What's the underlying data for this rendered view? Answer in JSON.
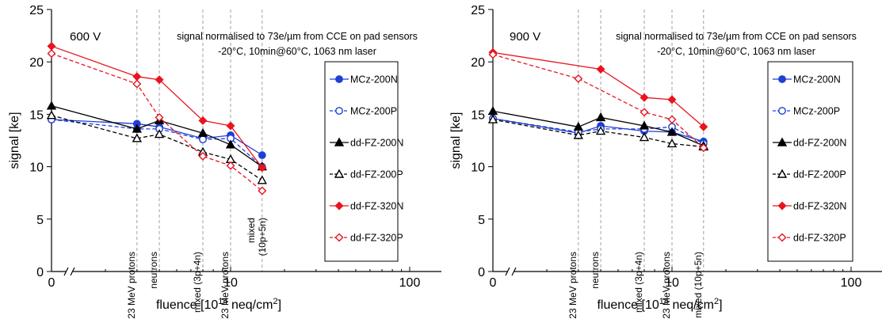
{
  "chart_data": [
    {
      "type": "line",
      "voltage": "600 V",
      "note_line1": "signal normalised to 73e/µm from CCE on pad sensors",
      "note_line2": "-20°C, 10min@60°C, 1063 nm laser",
      "ylabel": "signal [ke]",
      "xlabel": "fluence [10",
      "xlabel_sup": "14",
      "xlabel_tail": " neq/cm",
      "xlabel_sup2": "2",
      "xlabel_end": "]",
      "ylim": [
        0,
        25
      ],
      "yticks": [
        "0",
        "5",
        "10",
        "15",
        "20",
        "25"
      ],
      "xscale": "log with broken axis at 0",
      "xticks": [
        {
          "v": 0,
          "label": "0"
        },
        {
          "v": 10,
          "label": "10"
        },
        {
          "v": 100,
          "label": "100"
        }
      ],
      "fluence_lines": [
        {
          "x": 3,
          "label": "23 MeV protons"
        },
        {
          "x": 4,
          "label": "neutrons"
        },
        {
          "x": 7,
          "label": "mixed  (3p+4n)"
        },
        {
          "x": 10,
          "label": "23 MeV protons"
        },
        {
          "x": 15,
          "label": "mixed",
          "label2": "(10p+5n)"
        }
      ],
      "legend": "right",
      "series": [
        {
          "name": "MCz-200N",
          "color": "#1f3fd6",
          "marker": "circle-filled",
          "dash": false,
          "points": [
            [
              0,
              14.5
            ],
            [
              3,
              14.1
            ],
            [
              4,
              13.8
            ],
            [
              7,
              12.7
            ],
            [
              10,
              13.0
            ],
            [
              15,
              11.1
            ]
          ]
        },
        {
          "name": "MCz-200P",
          "color": "#1f3fd6",
          "marker": "circle-open",
          "dash": true,
          "points": [
            [
              0,
              14.5
            ],
            [
              3,
              13.6
            ],
            [
              4,
              13.6
            ],
            [
              7,
              12.6
            ],
            [
              10,
              12.7
            ],
            [
              15,
              10.0
            ]
          ]
        },
        {
          "name": "dd-FZ-200N",
          "color": "#000000",
          "marker": "triangle-filled",
          "dash": false,
          "points": [
            [
              0,
              15.8
            ],
            [
              3,
              13.6
            ],
            [
              4,
              14.4
            ],
            [
              7,
              13.2
            ],
            [
              10,
              12.1
            ],
            [
              15,
              10.0
            ]
          ]
        },
        {
          "name": "dd-FZ-200P",
          "color": "#000000",
          "marker": "triangle-open",
          "dash": true,
          "points": [
            [
              0,
              14.9
            ],
            [
              3,
              12.7
            ],
            [
              4,
              13.1
            ],
            [
              7,
              11.4
            ],
            [
              10,
              10.7
            ],
            [
              15,
              8.7
            ]
          ]
        },
        {
          "name": "dd-FZ-320N",
          "color": "#e8141e",
          "marker": "diamond-filled",
          "dash": false,
          "points": [
            [
              0,
              21.5
            ],
            [
              3,
              18.6
            ],
            [
              4,
              18.3
            ],
            [
              7,
              14.4
            ],
            [
              10,
              13.9
            ],
            [
              15,
              9.9
            ]
          ]
        },
        {
          "name": "dd-FZ-320P",
          "color": "#e8141e",
          "marker": "diamond-open",
          "dash": true,
          "points": [
            [
              0,
              20.8
            ],
            [
              3,
              17.9
            ],
            [
              4,
              14.7
            ],
            [
              7,
              11.0
            ],
            [
              10,
              10.1
            ],
            [
              15,
              7.7
            ]
          ]
        }
      ]
    },
    {
      "type": "line",
      "voltage": "900 V",
      "note_line1": "signal normalised to 73e/µm from CCE on pad sensors",
      "note_line2": "-20°C, 10min@60°C, 1063 nm laser",
      "ylabel": "signal [ke]",
      "xlabel": "fluence [10",
      "xlabel_sup": "14",
      "xlabel_tail": " neq/cm",
      "xlabel_sup2": "2",
      "xlabel_end": "]",
      "ylim": [
        0,
        25
      ],
      "yticks": [
        "0",
        "5",
        "10",
        "15",
        "20",
        "25"
      ],
      "xscale": "log with broken axis at 0",
      "xticks": [
        {
          "v": 0,
          "label": "0"
        },
        {
          "v": 10,
          "label": "10"
        },
        {
          "v": 100,
          "label": "100"
        }
      ],
      "fluence_lines": [
        {
          "x": 3,
          "label": "23 MeV protons"
        },
        {
          "x": 4,
          "label": "neutrons"
        },
        {
          "x": 7,
          "label": "mixed  (3p+4n)"
        },
        {
          "x": 10,
          "label": "23 MeV protons"
        },
        {
          "x": 15,
          "label": "mixed (10p+5n)"
        }
      ],
      "legend": "right",
      "series": [
        {
          "name": "MCz-200N",
          "color": "#1f3fd6",
          "marker": "circle-filled",
          "dash": false,
          "points": [
            [
              0,
              14.6
            ],
            [
              3,
              13.2
            ],
            [
              4,
              13.9
            ],
            [
              7,
              13.4
            ],
            [
              10,
              13.3
            ],
            [
              15,
              12.4
            ]
          ]
        },
        {
          "name": "MCz-200P",
          "color": "#1f3fd6",
          "marker": "circle-open",
          "dash": true,
          "points": [
            [
              0,
              14.6
            ],
            [
              3,
              13.3
            ],
            [
              4,
              13.6
            ],
            [
              7,
              13.6
            ],
            [
              10,
              13.8
            ],
            [
              15,
              12.2
            ]
          ]
        },
        {
          "name": "dd-FZ-200N",
          "color": "#000000",
          "marker": "triangle-filled",
          "dash": false,
          "points": [
            [
              0,
              15.3
            ],
            [
              3,
              13.8
            ],
            [
              4,
              14.7
            ],
            [
              7,
              13.9
            ],
            [
              10,
              13.3
            ],
            [
              15,
              12.0
            ]
          ]
        },
        {
          "name": "dd-FZ-200P",
          "color": "#000000",
          "marker": "triangle-open",
          "dash": true,
          "points": [
            [
              0,
              14.5
            ],
            [
              3,
              13.0
            ],
            [
              4,
              13.4
            ],
            [
              7,
              12.8
            ],
            [
              10,
              12.2
            ],
            [
              15,
              11.9
            ]
          ]
        },
        {
          "name": "dd-FZ-320N",
          "color": "#e8141e",
          "marker": "diamond-filled",
          "dash": false,
          "points": [
            [
              0,
              20.9
            ],
            [
              4,
              19.3
            ],
            [
              7,
              16.6
            ],
            [
              10,
              16.4
            ],
            [
              15,
              13.8
            ]
          ]
        },
        {
          "name": "dd-FZ-320P",
          "color": "#e8141e",
          "marker": "diamond-open",
          "dash": true,
          "points": [
            [
              0,
              20.7
            ],
            [
              3,
              18.4
            ],
            [
              7,
              15.2
            ],
            [
              10,
              14.5
            ],
            [
              15,
              11.8
            ]
          ]
        }
      ]
    }
  ]
}
